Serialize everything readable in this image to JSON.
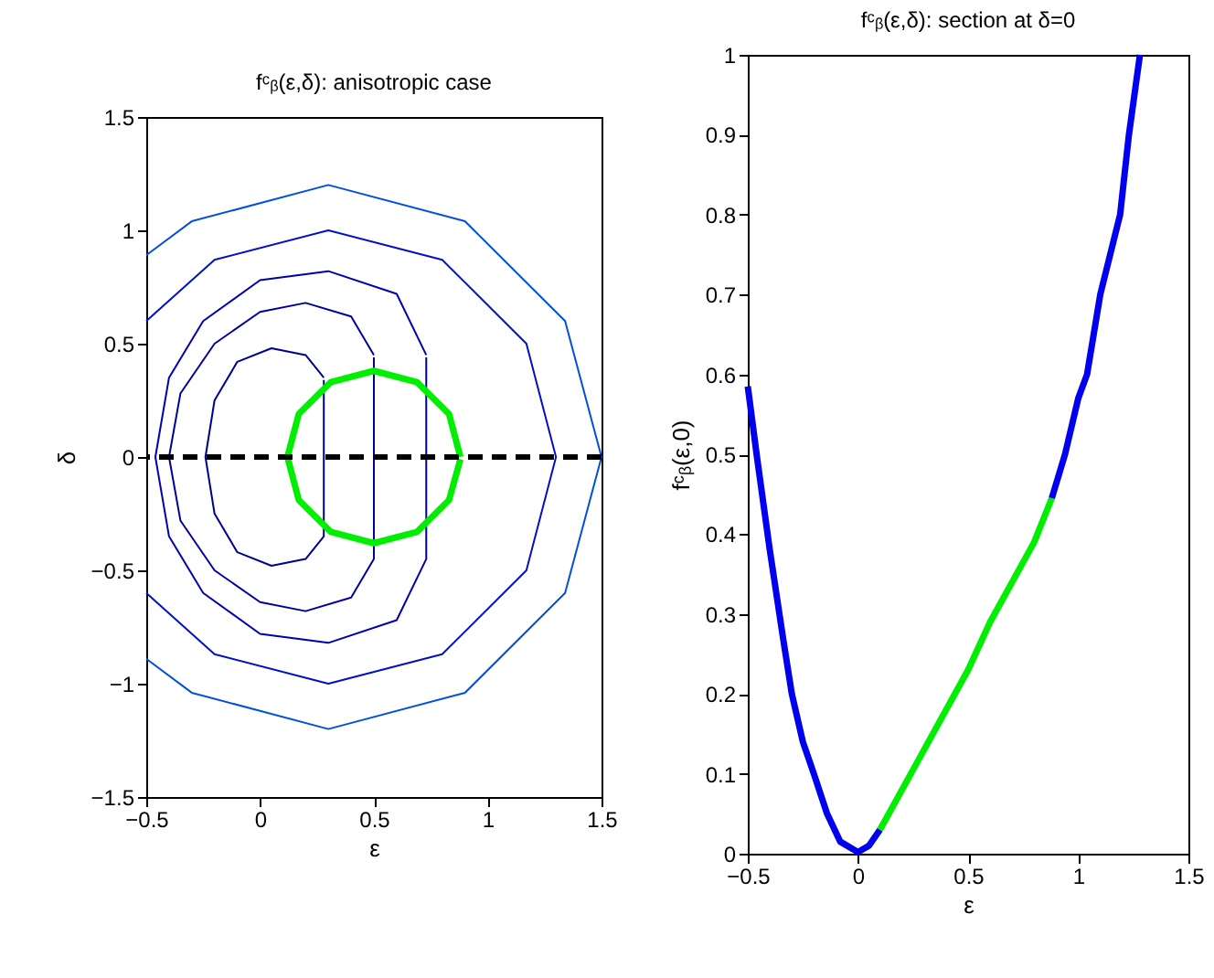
{
  "chart_data": [
    {
      "type": "line",
      "title": "fᶜᵦ(ε,δ): anisotropic case",
      "xlabel": "ε",
      "ylabel": "δ",
      "xlim": [
        -0.5,
        1.5
      ],
      "ylim": [
        -1.5,
        1.5
      ],
      "xticks": [
        -0.5,
        0,
        0.5,
        1,
        1.5
      ],
      "yticks": [
        -1.5,
        -1,
        -0.5,
        0,
        0.5,
        1,
        1.5
      ],
      "grid": false,
      "series": [
        {
          "color": "#00008f",
          "x": [
            0.28,
            0.2,
            0.05,
            -0.1,
            -0.2,
            -0.24,
            -0.2,
            -0.1,
            0.05,
            0.2,
            0.28,
            0.28
          ],
          "values": [
            0.35,
            0.45,
            0.48,
            0.42,
            0.25,
            0,
            -0.25,
            -0.42,
            -0.48,
            -0.45,
            -0.35,
            0.34
          ]
        },
        {
          "color": "#00009f",
          "x": [
            0.5,
            0.4,
            0.2,
            0,
            -0.2,
            -0.35,
            -0.4,
            -0.35,
            -0.2,
            0,
            0.2,
            0.4,
            0.5,
            0.5
          ],
          "values": [
            0.45,
            0.62,
            0.68,
            0.64,
            0.5,
            0.28,
            0,
            -0.28,
            -0.5,
            -0.64,
            -0.68,
            -0.62,
            -0.45,
            0.44
          ]
        },
        {
          "color": "#0000b0",
          "x": [
            0.73,
            0.6,
            0.3,
            0,
            -0.25,
            -0.4,
            -0.46,
            -0.4,
            -0.25,
            0,
            0.3,
            0.6,
            0.73,
            0.73
          ],
          "values": [
            0.45,
            0.72,
            0.82,
            0.78,
            0.6,
            0.35,
            0,
            -0.35,
            -0.6,
            -0.78,
            -0.82,
            -0.72,
            -0.45,
            0.44
          ]
        },
        {
          "color": "#0010c8",
          "x": [
            -0.5,
            -0.2,
            0.3,
            0.8,
            1.17,
            1.3,
            1.17,
            0.8,
            0.3,
            -0.2,
            -0.5
          ],
          "values": [
            0.6,
            0.87,
            1.0,
            0.87,
            0.5,
            0,
            -0.5,
            -0.87,
            -1.0,
            -0.87,
            -0.6
          ]
        },
        {
          "color": "#0050e0",
          "x": [
            -0.5,
            -0.3,
            0.3,
            0.9,
            1.34,
            1.5,
            1.34,
            0.9,
            0.3,
            -0.3,
            -0.5
          ],
          "values": [
            0.89,
            1.04,
            1.2,
            1.04,
            0.6,
            0,
            -0.6,
            -1.04,
            -1.2,
            -1.04,
            -0.89
          ]
        },
        {
          "color": "#00ee00",
          "x": [
            0.88,
            0.83,
            0.69,
            0.5,
            0.31,
            0.17,
            0.12,
            0.17,
            0.31,
            0.5,
            0.69,
            0.83,
            0.88
          ],
          "values": [
            0,
            0.19,
            0.33,
            0.38,
            0.33,
            0.19,
            0,
            -0.19,
            -0.33,
            -0.38,
            -0.33,
            -0.19,
            -0.01
          ]
        }
      ],
      "ref_lines": [
        {
          "axis": "y",
          "value": 0,
          "color": "#000000",
          "line_style": "dashed"
        }
      ]
    },
    {
      "type": "line",
      "title": "fᶜᵦ(ε,δ): section at δ=0",
      "xlabel": "ε",
      "ylabel": "fᶜᵦ(ε,0)",
      "xlim": [
        -0.5,
        1.5
      ],
      "ylim": [
        0,
        1
      ],
      "xticks": [
        -0.5,
        0,
        0.5,
        1,
        1.5
      ],
      "yticks": [
        0,
        0.1,
        0.2,
        0.3,
        0.4,
        0.5,
        0.6,
        0.7,
        0.8,
        0.9,
        1
      ],
      "grid": false,
      "series": [
        {
          "color": "#0000ee",
          "x": [
            -0.5,
            -0.46,
            -0.4,
            -0.34,
            -0.3,
            -0.25,
            -0.2,
            -0.14,
            -0.08,
            0,
            0.05,
            0.1
          ],
          "values": [
            0.585,
            0.5,
            0.38,
            0.27,
            0.2,
            0.14,
            0.1,
            0.05,
            0.015,
            0.002,
            0.01,
            0.03
          ]
        },
        {
          "color": "#00ee00",
          "x": [
            0.1,
            0.2,
            0.3,
            0.4,
            0.5,
            0.6,
            0.7,
            0.8,
            0.88
          ],
          "values": [
            0.03,
            0.08,
            0.13,
            0.18,
            0.23,
            0.29,
            0.34,
            0.39,
            0.445
          ]
        },
        {
          "color": "#0000ee",
          "x": [
            0.88,
            0.94,
            1.0,
            1.04,
            1.1,
            1.19,
            1.23,
            1.28
          ],
          "values": [
            0.445,
            0.5,
            0.57,
            0.6,
            0.7,
            0.8,
            0.9,
            1.0
          ]
        }
      ]
    }
  ]
}
